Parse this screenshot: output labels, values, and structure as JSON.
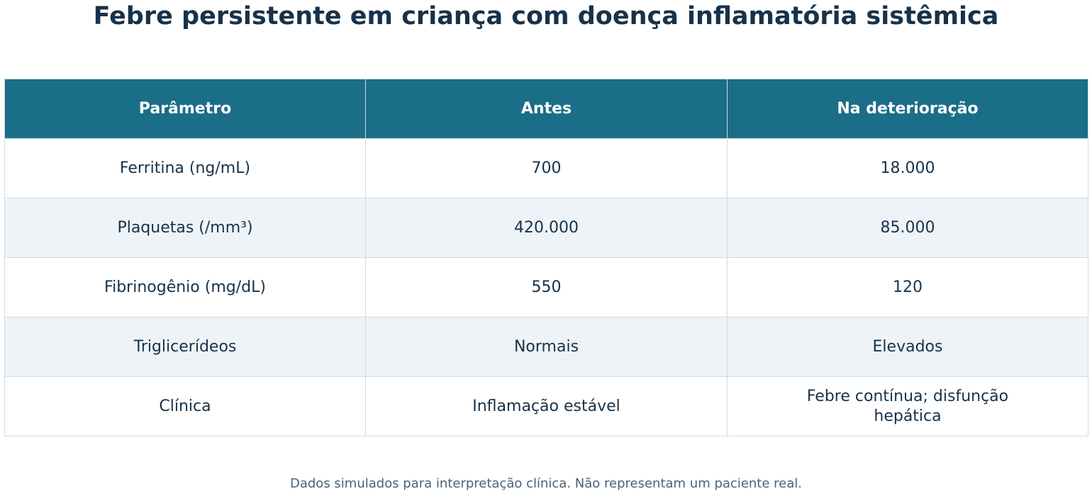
{
  "title": "Febre persistente em criança com doença inflamatória sistêmica",
  "footnote": "Dados simulados para interpretação clínica. Não representam um paciente real.",
  "colors": {
    "header_bg": "#1a6e87",
    "header_text": "#ffffff",
    "text": "#17324a",
    "alt_row_bg": "#eef3f7",
    "border": "#cfdbe3"
  },
  "chart_data": {
    "type": "table",
    "title": "Febre persistente em criança com doença inflamatória sistêmica",
    "columns": [
      "Parâmetro",
      "Antes",
      "Na deterioração"
    ],
    "rows": [
      [
        "Ferritina (ng/mL)",
        "700",
        "18.000"
      ],
      [
        "Plaquetas (/mm³)",
        "420.000",
        "85.000"
      ],
      [
        "Fibrinogênio (mg/dL)",
        "550",
        "120"
      ],
      [
        "Triglicerídeos",
        "Normais",
        "Elevados"
      ],
      [
        "Clínica",
        "Inflamação estável",
        "Febre contínua; disfunção hepática"
      ]
    ]
  }
}
